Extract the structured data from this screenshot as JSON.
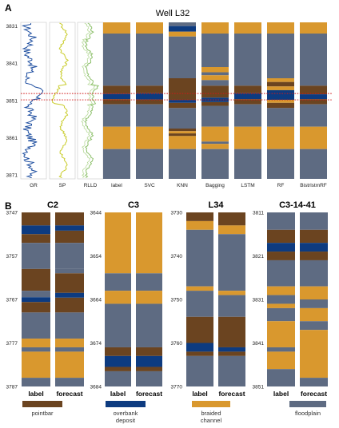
{
  "colors": {
    "pointbar": "#6b4420",
    "overbank": "#0d3b80",
    "braided": "#d9982e",
    "floodplain": "#5e6b82",
    "gr": "#1f4fa0",
    "sp": "#c9cc2a",
    "rlld": "#8dc06b",
    "marker": "#d01818"
  },
  "panel_a": {
    "label": "A",
    "title": "Well L32",
    "depth_ticks": [
      "3831",
      "3841",
      "3851",
      "3861",
      "3871"
    ],
    "depth_range": [
      3830,
      3872
    ],
    "marker_depths": [
      3849.1,
      3850.8
    ],
    "logs": [
      {
        "name": "GR",
        "key": "gr"
      },
      {
        "name": "SP",
        "key": "sp"
      },
      {
        "name": "RLLD",
        "key": "rlld"
      }
    ],
    "columns": [
      {
        "name": "label",
        "segments": [
          [
            "braided",
            3830,
            3833
          ],
          [
            "floodplain",
            3833,
            3847
          ],
          [
            "pointbar",
            3847,
            3849.2
          ],
          [
            "overbank",
            3849.2,
            3850.6
          ],
          [
            "pointbar",
            3850.6,
            3852
          ],
          [
            "floodplain",
            3852,
            3858
          ],
          [
            "braided",
            3858,
            3864
          ],
          [
            "floodplain",
            3864,
            3872
          ]
        ]
      },
      {
        "name": "SVC",
        "segments": [
          [
            "braided",
            3830,
            3833
          ],
          [
            "floodplain",
            3833,
            3847
          ],
          [
            "pointbar",
            3847,
            3849
          ],
          [
            "overbank",
            3849,
            3850.7
          ],
          [
            "pointbar",
            3850.7,
            3852
          ],
          [
            "floodplain",
            3852,
            3858
          ],
          [
            "braided",
            3858,
            3864
          ],
          [
            "floodplain",
            3864,
            3872
          ]
        ]
      },
      {
        "name": "KNN",
        "segments": [
          [
            "floodplain",
            3830,
            3831
          ],
          [
            "overbank",
            3831,
            3832.5
          ],
          [
            "braided",
            3832.5,
            3833.8
          ],
          [
            "floodplain",
            3833.8,
            3845
          ],
          [
            "pointbar",
            3845,
            3850.8
          ],
          [
            "overbank",
            3850.8,
            3851.6
          ],
          [
            "pointbar",
            3851.6,
            3853
          ],
          [
            "floodplain",
            3853,
            3858.5
          ],
          [
            "pointbar",
            3858.5,
            3859.2
          ],
          [
            "braided",
            3859.2,
            3859.8
          ],
          [
            "pointbar",
            3859.8,
            3860.5
          ],
          [
            "braided",
            3860.5,
            3864
          ],
          [
            "floodplain",
            3864,
            3872
          ]
        ]
      },
      {
        "name": "Bagging",
        "segments": [
          [
            "braided",
            3830,
            3833
          ],
          [
            "floodplain",
            3833,
            3842
          ],
          [
            "braided",
            3842,
            3843.4
          ],
          [
            "floodplain",
            3843.4,
            3844.2
          ],
          [
            "braided",
            3844.2,
            3845.5
          ],
          [
            "floodplain",
            3845.5,
            3847
          ],
          [
            "pointbar",
            3847,
            3850.2
          ],
          [
            "overbank",
            3850.2,
            3851.4
          ],
          [
            "pointbar",
            3851.4,
            3852.4
          ],
          [
            "floodplain",
            3852.4,
            3858
          ],
          [
            "braided",
            3858,
            3862
          ],
          [
            "floodplain",
            3862,
            3862.6
          ],
          [
            "braided",
            3862.6,
            3864
          ],
          [
            "floodplain",
            3864,
            3872
          ]
        ]
      },
      {
        "name": "LSTM",
        "segments": [
          [
            "braided",
            3830,
            3833
          ],
          [
            "floodplain",
            3833,
            3847
          ],
          [
            "pointbar",
            3847,
            3849
          ],
          [
            "overbank",
            3849,
            3850.6
          ],
          [
            "pointbar",
            3850.6,
            3852
          ],
          [
            "floodplain",
            3852,
            3858
          ],
          [
            "braided",
            3858,
            3864
          ],
          [
            "floodplain",
            3864,
            3872
          ]
        ]
      },
      {
        "name": "RF",
        "segments": [
          [
            "braided",
            3830,
            3833
          ],
          [
            "floodplain",
            3833,
            3845
          ],
          [
            "braided",
            3845,
            3846
          ],
          [
            "pointbar",
            3846,
            3847.2
          ],
          [
            "braided",
            3847.2,
            3848.2
          ],
          [
            "overbank",
            3848.2,
            3850.8
          ],
          [
            "braided",
            3850.8,
            3851.6
          ],
          [
            "pointbar",
            3851.6,
            3853
          ],
          [
            "floodplain",
            3853,
            3858
          ],
          [
            "braided",
            3858,
            3864
          ],
          [
            "floodplain",
            3864,
            3872
          ]
        ]
      },
      {
        "name": "BistrlstmRF",
        "segments": [
          [
            "braided",
            3830,
            3833
          ],
          [
            "floodplain",
            3833,
            3847
          ],
          [
            "pointbar",
            3847,
            3849.3
          ],
          [
            "overbank",
            3849.3,
            3850.6
          ],
          [
            "pointbar",
            3850.6,
            3852
          ],
          [
            "floodplain",
            3852,
            3858
          ],
          [
            "braided",
            3858,
            3864
          ],
          [
            "floodplain",
            3864,
            3872
          ]
        ]
      }
    ]
  },
  "panel_b": {
    "label": "B",
    "column_labels": [
      "label",
      "forecast"
    ],
    "wells": [
      {
        "name": "C2",
        "depth_ticks": [
          "3747",
          "3757",
          "3767",
          "3777",
          "3787"
        ],
        "range": [
          3747,
          3787
        ],
        "label_col": [
          [
            "pointbar",
            3747,
            3750
          ],
          [
            "overbank",
            3750,
            3752
          ],
          [
            "pointbar",
            3752,
            3754
          ],
          [
            "floodplain",
            3754,
            3760
          ],
          [
            "pointbar",
            3760,
            3765
          ],
          [
            "floodplain",
            3765,
            3766.5
          ],
          [
            "overbank",
            3766.5,
            3767.6
          ],
          [
            "pointbar",
            3767.6,
            3770
          ],
          [
            "floodplain",
            3770,
            3776
          ],
          [
            "braided",
            3776,
            3778
          ],
          [
            "floodplain",
            3778,
            3779
          ],
          [
            "braided",
            3779,
            3785
          ],
          [
            "floodplain",
            3785,
            3787
          ]
        ],
        "forecast_col": [
          [
            "pointbar",
            3747,
            3750
          ],
          [
            "overbank",
            3750,
            3751.2
          ],
          [
            "pointbar",
            3751.2,
            3754
          ],
          [
            "floodplain",
            3754,
            3760
          ],
          [
            "floodplain",
            3760,
            3761
          ],
          [
            "pointbar",
            3761,
            3765.5
          ],
          [
            "overbank",
            3765.5,
            3766.6
          ],
          [
            "pointbar",
            3766.6,
            3770
          ],
          [
            "floodplain",
            3770,
            3776
          ],
          [
            "braided",
            3776,
            3778
          ],
          [
            "floodplain",
            3778,
            3779
          ],
          [
            "braided",
            3779,
            3785
          ],
          [
            "floodplain",
            3785,
            3787
          ]
        ]
      },
      {
        "name": "C3",
        "depth_ticks": [
          "3644",
          "3654",
          "3664",
          "3674",
          "3684"
        ],
        "range": [
          3644,
          3684
        ],
        "label_col": [
          [
            "braided",
            3644,
            3658
          ],
          [
            "floodplain",
            3658,
            3662
          ],
          [
            "braided",
            3662,
            3665
          ],
          [
            "floodplain",
            3665,
            3675
          ],
          [
            "pointbar",
            3675,
            3677
          ],
          [
            "overbank",
            3677,
            3679.5
          ],
          [
            "pointbar",
            3679.5,
            3680.5
          ],
          [
            "floodplain",
            3680.5,
            3684
          ]
        ],
        "forecast_col": [
          [
            "braided",
            3644,
            3658
          ],
          [
            "floodplain",
            3658,
            3662
          ],
          [
            "braided",
            3662,
            3665
          ],
          [
            "floodplain",
            3665,
            3675
          ],
          [
            "pointbar",
            3675,
            3677
          ],
          [
            "overbank",
            3677,
            3679.5
          ],
          [
            "pointbar",
            3679.5,
            3680.5
          ],
          [
            "floodplain",
            3680.5,
            3684
          ]
        ]
      },
      {
        "name": "L34",
        "depth_ticks": [
          "3730",
          "3740",
          "3750",
          "3760",
          "3770"
        ],
        "range": [
          3730,
          3770
        ],
        "label_col": [
          [
            "pointbar",
            3730,
            3732
          ],
          [
            "braided",
            3732,
            3734
          ],
          [
            "floodplain",
            3734,
            3747
          ],
          [
            "braided",
            3747,
            3748
          ],
          [
            "floodplain",
            3748,
            3754
          ],
          [
            "pointbar",
            3754,
            3760
          ],
          [
            "overbank",
            3760,
            3762
          ],
          [
            "pointbar",
            3762,
            3763
          ],
          [
            "floodplain",
            3763,
            3770
          ]
        ],
        "forecast_col": [
          [
            "pointbar",
            3730,
            3733
          ],
          [
            "braided",
            3733,
            3735
          ],
          [
            "floodplain",
            3735,
            3748
          ],
          [
            "braided",
            3748,
            3749
          ],
          [
            "floodplain",
            3749,
            3754
          ],
          [
            "pointbar",
            3754,
            3761
          ],
          [
            "overbank",
            3761,
            3762
          ],
          [
            "pointbar",
            3762,
            3763
          ],
          [
            "floodplain",
            3763,
            3770
          ]
        ]
      },
      {
        "name": "C3-14-41",
        "depth_ticks": [
          "3811",
          "3821",
          "3831",
          "3841",
          "3851"
        ],
        "range": [
          3811,
          3851
        ],
        "label_col": [
          [
            "floodplain",
            3811,
            3815
          ],
          [
            "pointbar",
            3815,
            3818
          ],
          [
            "overbank",
            3818,
            3820
          ],
          [
            "pointbar",
            3820,
            3822
          ],
          [
            "floodplain",
            3822,
            3828
          ],
          [
            "braided",
            3828,
            3830
          ],
          [
            "floodplain",
            3830,
            3832
          ],
          [
            "braided",
            3832,
            3833
          ],
          [
            "floodplain",
            3833,
            3836
          ],
          [
            "braided",
            3836,
            3842
          ],
          [
            "floodplain",
            3842,
            3843
          ],
          [
            "braided",
            3843,
            3847
          ],
          [
            "floodplain",
            3847,
            3851
          ]
        ],
        "forecast_col": [
          [
            "floodplain",
            3811,
            3815
          ],
          [
            "pointbar",
            3815,
            3818
          ],
          [
            "overbank",
            3818,
            3820
          ],
          [
            "pointbar",
            3820,
            3822
          ],
          [
            "floodplain",
            3822,
            3828
          ],
          [
            "braided",
            3828,
            3831
          ],
          [
            "floodplain",
            3831,
            3833
          ],
          [
            "braided",
            3833,
            3836
          ],
          [
            "floodplain",
            3836,
            3838
          ],
          [
            "braided",
            3838,
            3849
          ],
          [
            "floodplain",
            3849,
            3851
          ]
        ]
      }
    ]
  },
  "legend": [
    {
      "key": "pointbar",
      "label": "pointbar"
    },
    {
      "key": "overbank",
      "label": "overbank deposit"
    },
    {
      "key": "braided",
      "label": "braided channel"
    },
    {
      "key": "floodplain",
      "label": "floodplain"
    }
  ]
}
